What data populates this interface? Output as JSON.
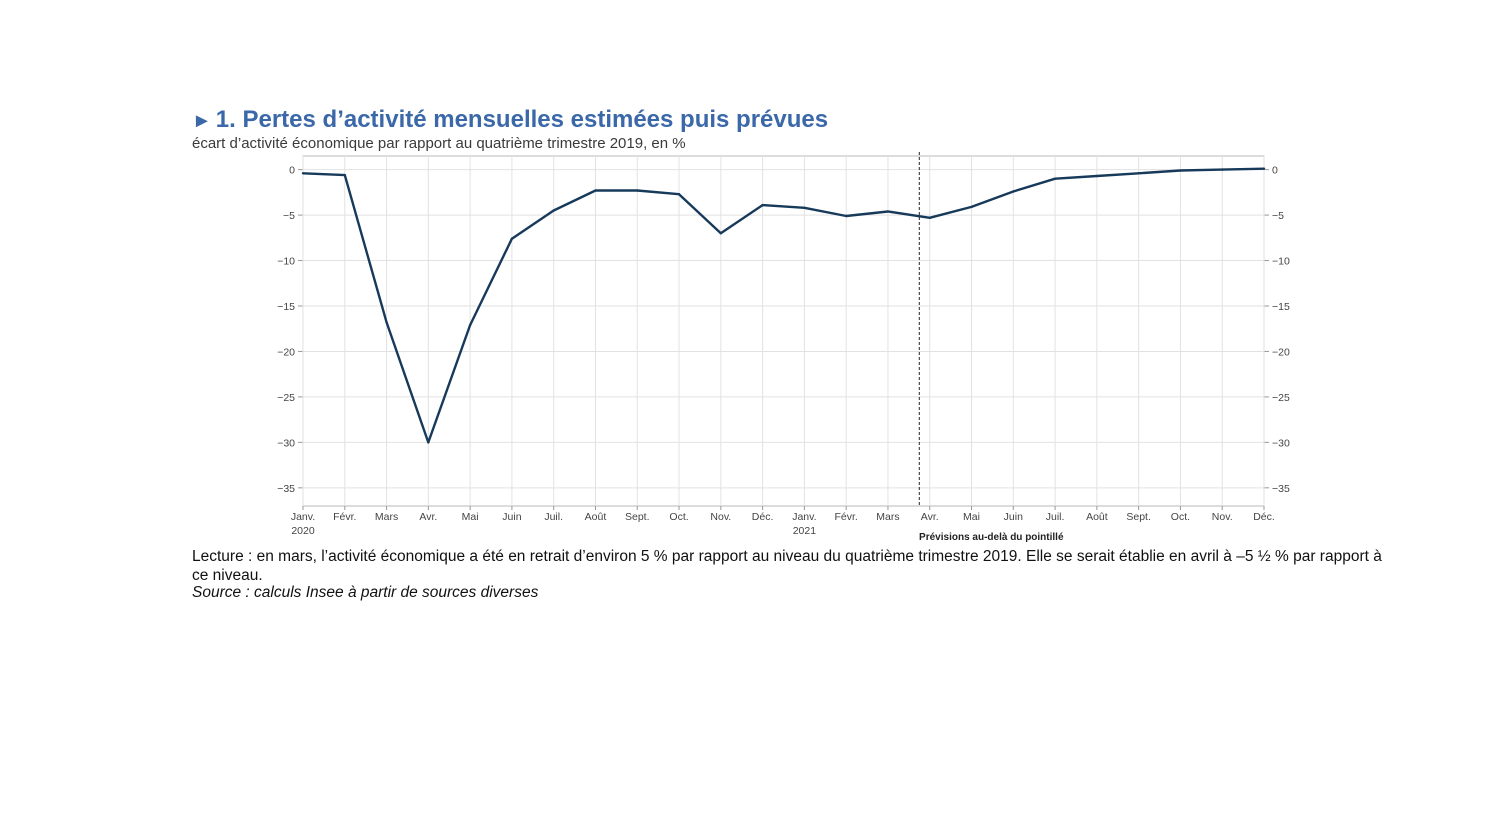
{
  "header": {
    "marker": "►",
    "title": "1. Pertes d’activité mensuelles estimées puis prévues",
    "subtitle": "écart d’activité économique par rapport au quatrième trimestre 2019, en %"
  },
  "chart_data": {
    "type": "line",
    "title": "1. Pertes d’activité mensuelles estimées puis prévues",
    "subtitle": "écart d’activité économique par rapport au quatrième trimestre 2019, en %",
    "categories": [
      "Janv.",
      "Févr.",
      "Mars",
      "Avr.",
      "Mai",
      "Juin",
      "Juil.",
      "Août",
      "Sept.",
      "Oct.",
      "Nov.",
      "Déc.",
      "Janv.",
      "Févr.",
      "Mars",
      "Avr.",
      "Mai",
      "Juin",
      "Juil.",
      "Août",
      "Sept.",
      "Oct.",
      "Nov.",
      "Déc."
    ],
    "year_labels": [
      {
        "index": 0,
        "label": "2020"
      },
      {
        "index": 12,
        "label": "2021"
      }
    ],
    "series": [
      {
        "values": [
          -0.4,
          -0.6,
          -16.8,
          -30.0,
          -17.1,
          -7.6,
          -4.5,
          -2.3,
          -2.3,
          -2.7,
          -7.0,
          -3.9,
          -4.2,
          -5.1,
          -4.6,
          -5.3,
          -4.1,
          -2.4,
          -1.0,
          -0.7,
          -0.4,
          -0.1,
          0.0,
          0.1
        ]
      }
    ],
    "ylim": [
      -37,
      1.5
    ],
    "yticks": [
      0,
      -5,
      -10,
      -15,
      -20,
      -25,
      -30,
      -35
    ],
    "dual_y_axis": true,
    "grid": true,
    "line_color": "#173a5b",
    "forecast_start_index": 14.75,
    "forecast_note": "Prévisions au-delà du pointillé"
  },
  "footer": {
    "reading": "Lecture : en mars, l’activité économique a été en retrait d’environ 5 % par rapport au niveau du quatrième trimestre 2019. Elle se serait établie en avril à –5 ½ % par rapport à ce niveau.",
    "source": "Source : calculs Insee à partir de sources diverses"
  }
}
